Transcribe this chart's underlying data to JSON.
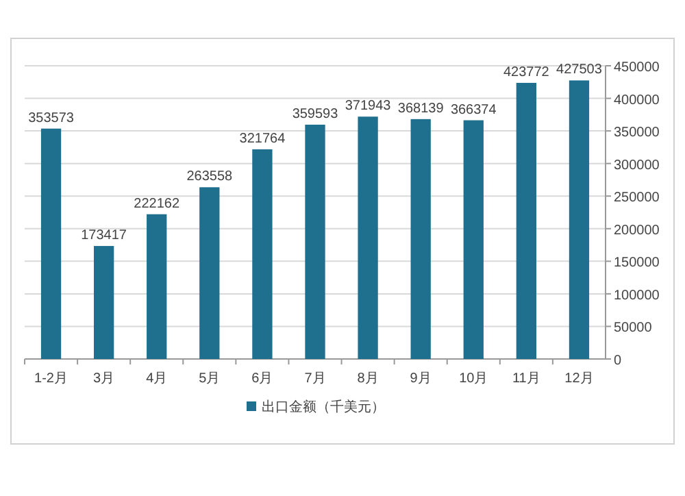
{
  "chart_data": {
    "type": "bar",
    "categories": [
      "1-2月",
      "3月",
      "4月",
      "5月",
      "6月",
      "7月",
      "8月",
      "9月",
      "10月",
      "11月",
      "12月"
    ],
    "series": [
      {
        "name": "出口金额（千美元）",
        "color": "#1f6f8f",
        "values": [
          353573,
          173417,
          222162,
          263558,
          321764,
          359593,
          371943,
          368139,
          366374,
          423772,
          427503
        ]
      }
    ],
    "ylim": [
      0,
      450000
    ],
    "yticks": [
      0,
      50000,
      100000,
      150000,
      200000,
      250000,
      300000,
      350000,
      400000,
      450000
    ],
    "grid": "y",
    "data_labels": true,
    "legend": "bottom"
  }
}
